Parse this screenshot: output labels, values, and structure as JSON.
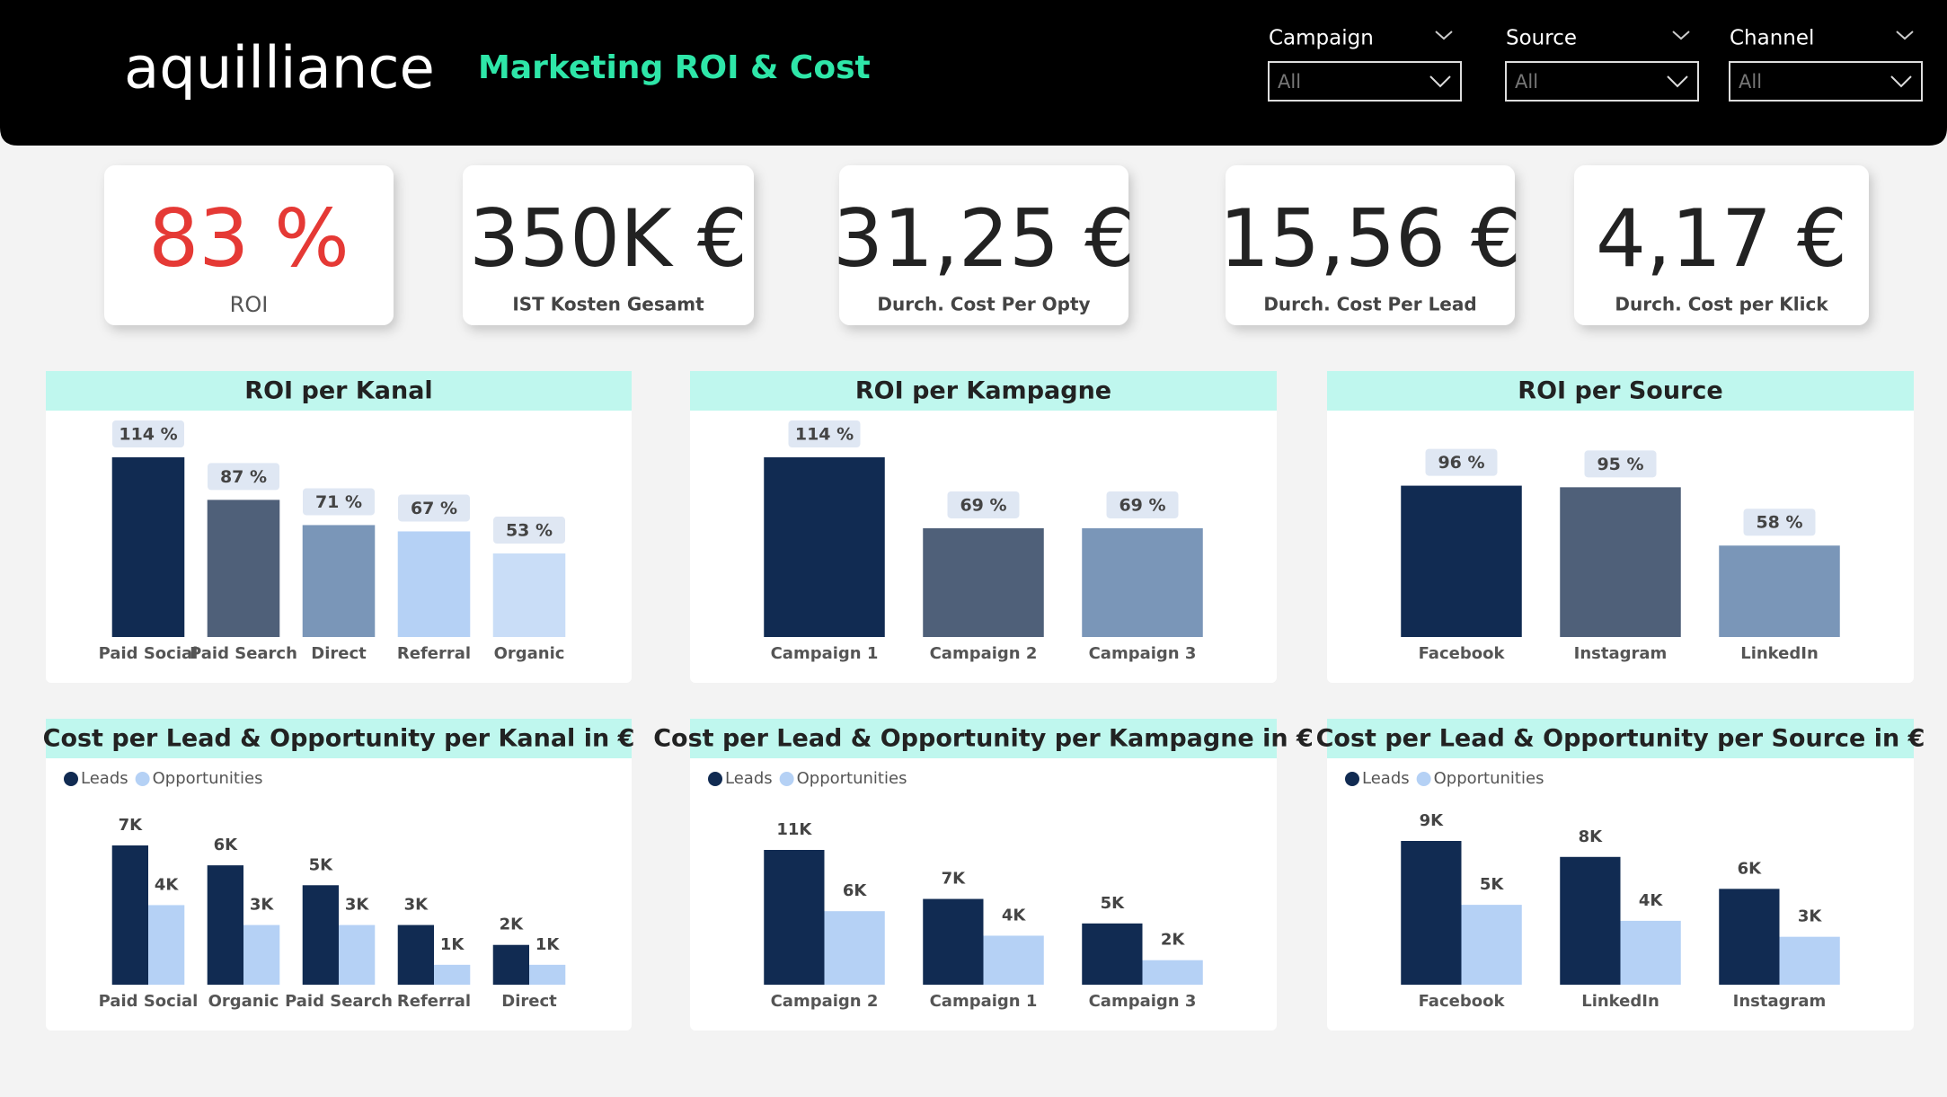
{
  "header": {
    "logo": "aquilliance",
    "title": "Marketing ROI & Cost"
  },
  "filters": [
    {
      "label": "Campaign",
      "value": "All"
    },
    {
      "label": "Source",
      "value": "All"
    },
    {
      "label": "Channel",
      "value": "All"
    }
  ],
  "kpis": [
    {
      "value": "83 %",
      "label": "ROI"
    },
    {
      "value": "350K €",
      "label": "IST Kosten Gesamt"
    },
    {
      "value": "31,25 €",
      "label": "Durch. Cost Per Opty"
    },
    {
      "value": "15,56 €",
      "label": "Durch. Cost Per Lead"
    },
    {
      "value": "4,17 €",
      "label": "Durch. Cost per Klick"
    }
  ],
  "chart_data": [
    {
      "type": "bar",
      "title": "ROI per Kanal",
      "categories": [
        "Paid Social",
        "Paid Search",
        "Direct",
        "Referral",
        "Organic"
      ],
      "values": [
        114,
        87,
        71,
        67,
        53
      ],
      "value_labels": [
        "114 %",
        "87 %",
        "71 %",
        "67 %",
        "53 %"
      ],
      "colors": [
        "#112b52",
        "#4f6079",
        "#7a96b8",
        "#b5d1f5",
        "#c9ddf7"
      ]
    },
    {
      "type": "bar",
      "title": "ROI per Kampagne",
      "categories": [
        "Campaign 1",
        "Campaign 2",
        "Campaign 3"
      ],
      "values": [
        114,
        69,
        69
      ],
      "value_labels": [
        "114 %",
        "69 %",
        "69 %"
      ],
      "colors": [
        "#112b52",
        "#4f6079",
        "#7a96b8"
      ]
    },
    {
      "type": "bar",
      "title": "ROI per Source",
      "categories": [
        "Facebook",
        "Instagram",
        "LinkedIn"
      ],
      "values": [
        96,
        95,
        58
      ],
      "value_labels": [
        "96 %",
        "95 %",
        "58 %"
      ],
      "colors": [
        "#112b52",
        "#4f6079",
        "#7a96b8"
      ]
    },
    {
      "type": "grouped_bar",
      "title": "Cost per Lead & Opportunity per Kanal in €",
      "categories": [
        "Paid Social",
        "Organic",
        "Paid Search",
        "Referral",
        "Direct"
      ],
      "legend": "top-left",
      "series": [
        {
          "name": "Leads",
          "color": "#112b52",
          "values": [
            7000,
            6000,
            5000,
            3000,
            2000
          ],
          "value_labels": [
            "7K",
            "6K",
            "5K",
            "3K",
            "2K"
          ]
        },
        {
          "name": "Opportunities",
          "color": "#b5d1f5",
          "values": [
            4000,
            3000,
            3000,
            1000,
            1000
          ],
          "value_labels": [
            "4K",
            "3K",
            "3K",
            "1K",
            "1K"
          ]
        }
      ]
    },
    {
      "type": "grouped_bar",
      "title": "Cost per Lead & Opportunity per Kampagne in €",
      "categories": [
        "Campaign 2",
        "Campaign 1",
        "Campaign 3"
      ],
      "legend": "top-left",
      "series": [
        {
          "name": "Leads",
          "color": "#112b52",
          "values": [
            11000,
            7000,
            5000
          ],
          "value_labels": [
            "11K",
            "7K",
            "5K"
          ]
        },
        {
          "name": "Opportunities",
          "color": "#b5d1f5",
          "values": [
            6000,
            4000,
            2000
          ],
          "value_labels": [
            "6K",
            "4K",
            "2K"
          ]
        }
      ]
    },
    {
      "type": "grouped_bar",
      "title": "Cost per Lead & Opportunity per Source in €",
      "categories": [
        "Facebook",
        "LinkedIn",
        "Instagram"
      ],
      "legend": "top-left",
      "series": [
        {
          "name": "Leads",
          "color": "#112b52",
          "values": [
            9000,
            8000,
            6000
          ],
          "value_labels": [
            "9K",
            "8K",
            "6K"
          ]
        },
        {
          "name": "Opportunities",
          "color": "#b5d1f5",
          "values": [
            5000,
            4000,
            3000
          ],
          "value_labels": [
            "5K",
            "4K",
            "3K"
          ]
        }
      ]
    }
  ]
}
